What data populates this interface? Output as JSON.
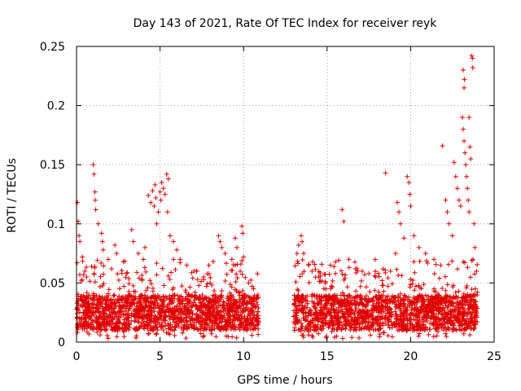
{
  "chart_data": {
    "type": "scatter",
    "title": "Day 143 of 2021, Rate Of TEC Index for receiver reyk",
    "xlabel": "GPS time / hours",
    "ylabel": "ROTI / TECUs",
    "xlim": [
      0,
      25
    ],
    "ylim": [
      0,
      0.25
    ],
    "xticks": [
      0,
      5,
      10,
      15,
      20,
      25
    ],
    "yticks": [
      0,
      0.05,
      0.1,
      0.15,
      0.2,
      0.25
    ],
    "xtick_labels": [
      "0",
      "5",
      "10",
      "15",
      "20",
      "25"
    ],
    "ytick_labels": [
      "0",
      "0.05",
      "0.1",
      "0.15",
      "0.2",
      "0.25"
    ],
    "grid": true,
    "marker": "+",
    "color": "#e00000",
    "data_gap_hours": [
      10.9,
      13.0
    ],
    "series": [
      {
        "name": "ROTI",
        "points": [
          [
            0.05,
            0.118
          ],
          [
            0.1,
            0.102
          ],
          [
            0.15,
            0.09
          ],
          [
            0.2,
            0.085
          ],
          [
            0.35,
            0.072
          ],
          [
            0.5,
            0.06
          ],
          [
            0.6,
            0.055
          ],
          [
            0.9,
            0.064
          ],
          [
            1.0,
            0.15
          ],
          [
            1.05,
            0.142
          ],
          [
            1.1,
            0.127
          ],
          [
            1.12,
            0.12
          ],
          [
            1.15,
            0.112
          ],
          [
            1.3,
            0.1
          ],
          [
            1.5,
            0.092
          ],
          [
            1.55,
            0.085
          ],
          [
            1.6,
            0.078
          ],
          [
            1.9,
            0.07
          ],
          [
            2.1,
            0.062
          ],
          [
            2.3,
            0.082
          ],
          [
            2.4,
            0.075
          ],
          [
            2.8,
            0.068
          ],
          [
            3.0,
            0.058
          ],
          [
            3.3,
            0.095
          ],
          [
            3.4,
            0.085
          ],
          [
            3.7,
            0.075
          ],
          [
            4.0,
            0.07
          ],
          [
            4.1,
            0.08
          ],
          [
            4.3,
            0.124
          ],
          [
            4.45,
            0.118
          ],
          [
            4.55,
            0.128
          ],
          [
            4.65,
            0.115
          ],
          [
            4.7,
            0.133
          ],
          [
            4.75,
            0.122
          ],
          [
            4.8,
            0.1
          ],
          [
            4.9,
            0.11
          ],
          [
            5.0,
            0.127
          ],
          [
            5.05,
            0.12
          ],
          [
            5.1,
            0.135
          ],
          [
            5.2,
            0.13
          ],
          [
            5.3,
            0.125
          ],
          [
            5.4,
            0.142
          ],
          [
            5.5,
            0.138
          ],
          [
            5.45,
            0.11
          ],
          [
            5.6,
            0.09
          ],
          [
            5.8,
            0.085
          ],
          [
            6.0,
            0.078
          ],
          [
            6.2,
            0.07
          ],
          [
            6.6,
            0.065
          ],
          [
            7.2,
            0.06
          ],
          [
            7.6,
            0.055
          ],
          [
            8.0,
            0.05
          ],
          [
            8.5,
            0.09
          ],
          [
            8.6,
            0.085
          ],
          [
            8.7,
            0.08
          ],
          [
            8.9,
            0.075
          ],
          [
            9.3,
            0.07
          ],
          [
            9.5,
            0.065
          ],
          [
            9.5,
            0.088
          ],
          [
            9.6,
            0.08
          ],
          [
            9.8,
            0.06
          ],
          [
            9.9,
            0.098
          ],
          [
            9.95,
            0.092
          ],
          [
            10.0,
            0.072
          ],
          [
            10.3,
            0.05
          ],
          [
            10.6,
            0.045
          ],
          [
            10.85,
            0.04
          ],
          [
            13.2,
            0.075
          ],
          [
            13.3,
            0.082
          ],
          [
            13.45,
            0.09
          ],
          [
            13.5,
            0.085
          ],
          [
            13.6,
            0.075
          ],
          [
            13.9,
            0.065
          ],
          [
            14.1,
            0.06
          ],
          [
            14.5,
            0.055
          ],
          [
            14.9,
            0.05
          ],
          [
            15.2,
            0.065
          ],
          [
            15.5,
            0.058
          ],
          [
            15.9,
            0.112
          ],
          [
            16.0,
            0.102
          ],
          [
            16.3,
            0.07
          ],
          [
            16.7,
            0.062
          ],
          [
            17.1,
            0.06
          ],
          [
            17.5,
            0.058
          ],
          [
            17.9,
            0.055
          ],
          [
            18.3,
            0.052
          ],
          [
            18.5,
            0.143
          ],
          [
            18.8,
            0.06
          ],
          [
            19.1,
            0.075
          ],
          [
            19.2,
            0.118
          ],
          [
            19.3,
            0.11
          ],
          [
            19.4,
            0.1
          ],
          [
            19.6,
            0.088
          ],
          [
            19.8,
            0.14
          ],
          [
            19.9,
            0.135
          ],
          [
            19.95,
            0.125
          ],
          [
            20.0,
            0.115
          ],
          [
            20.2,
            0.09
          ],
          [
            20.5,
            0.08
          ],
          [
            20.9,
            0.075
          ],
          [
            21.4,
            0.07
          ],
          [
            21.8,
            0.065
          ],
          [
            21.9,
            0.166
          ],
          [
            22.1,
            0.12
          ],
          [
            22.2,
            0.11
          ],
          [
            22.3,
            0.1
          ],
          [
            22.5,
            0.09
          ],
          [
            22.6,
            0.152
          ],
          [
            22.7,
            0.14
          ],
          [
            22.8,
            0.13
          ],
          [
            22.9,
            0.12
          ],
          [
            23.0,
            0.115
          ],
          [
            23.1,
            0.19
          ],
          [
            23.15,
            0.18
          ],
          [
            23.2,
            0.17
          ],
          [
            23.25,
            0.16
          ],
          [
            23.3,
            0.15
          ],
          [
            23.35,
            0.14
          ],
          [
            23.4,
            0.13
          ],
          [
            23.45,
            0.12
          ],
          [
            23.5,
            0.11
          ],
          [
            23.15,
            0.23
          ],
          [
            23.2,
            0.215
          ],
          [
            23.22,
            0.222
          ],
          [
            23.5,
            0.19
          ],
          [
            23.55,
            0.165
          ],
          [
            23.6,
            0.155
          ],
          [
            23.65,
            0.242
          ],
          [
            23.7,
            0.24
          ],
          [
            23.72,
            0.232
          ],
          [
            23.8,
            0.1
          ],
          [
            23.85,
            0.08
          ],
          [
            23.95,
            0.06
          ]
        ]
      }
    ],
    "noise_band": {
      "segments": [
        [
          0,
          10.9
        ],
        [
          13.0,
          24.0
        ]
      ],
      "typical_range": [
        0.01,
        0.05
      ],
      "min_value": 0.003
    }
  }
}
